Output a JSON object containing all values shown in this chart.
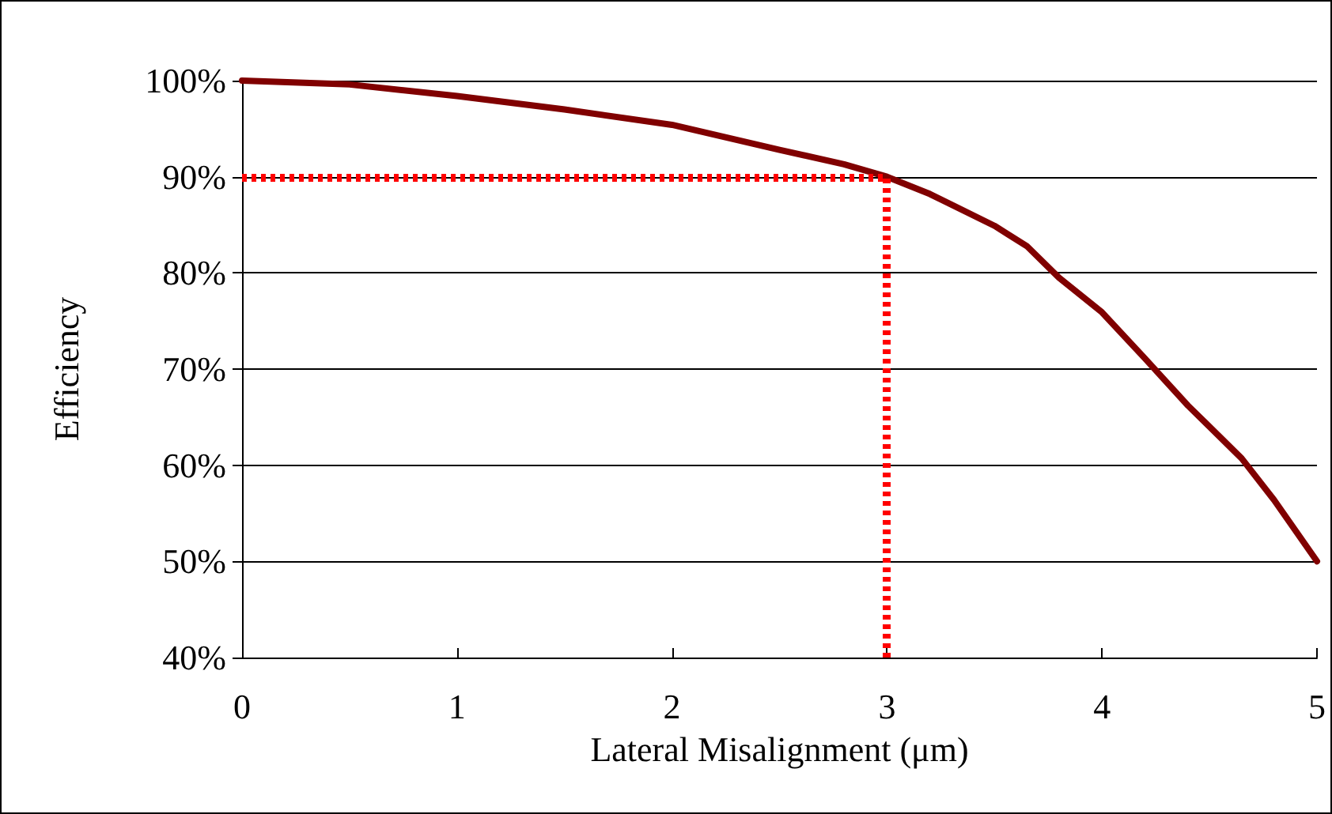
{
  "chart_data": {
    "type": "line",
    "xlabel": "Lateral Misalignment (μm)",
    "ylabel": "Efficiency",
    "x": [
      0,
      0.5,
      1,
      1.5,
      2,
      2.5,
      2.8,
      3,
      3.2,
      3.5,
      3.65,
      3.8,
      4,
      4.2,
      4.4,
      4.65,
      4.8,
      5
    ],
    "series": [
      {
        "color": "#800000",
        "values": [
          100,
          99.6,
          98.4,
          97,
          95.4,
          92.8,
          91.3,
          90,
          88.2,
          84.9,
          82.8,
          79.5,
          75.9,
          71.1,
          66.2,
          60.7,
          56.4,
          50
        ]
      }
    ],
    "xlim": [
      0,
      5
    ],
    "xticks": [
      0,
      1,
      2,
      3,
      4,
      5
    ],
    "ylim": [
      40,
      100
    ],
    "yticks": [
      {
        "value": 40,
        "label": "40%"
      },
      {
        "value": 50,
        "label": "50%"
      },
      {
        "value": 60,
        "label": "60%"
      },
      {
        "value": 70,
        "label": "70%"
      },
      {
        "value": 80,
        "label": "80%"
      },
      {
        "value": 90,
        "label": "90%"
      },
      {
        "value": 100,
        "label": "100%"
      }
    ],
    "grid": "y",
    "marker": "none",
    "line_style": "solid",
    "ref_lines": [
      {
        "axis": "y",
        "value": 90,
        "color": "#ff0000",
        "line_style": "dotted"
      },
      {
        "axis": "x",
        "value": 3,
        "color": "#ff0000",
        "line_style": "dotted"
      }
    ]
  }
}
